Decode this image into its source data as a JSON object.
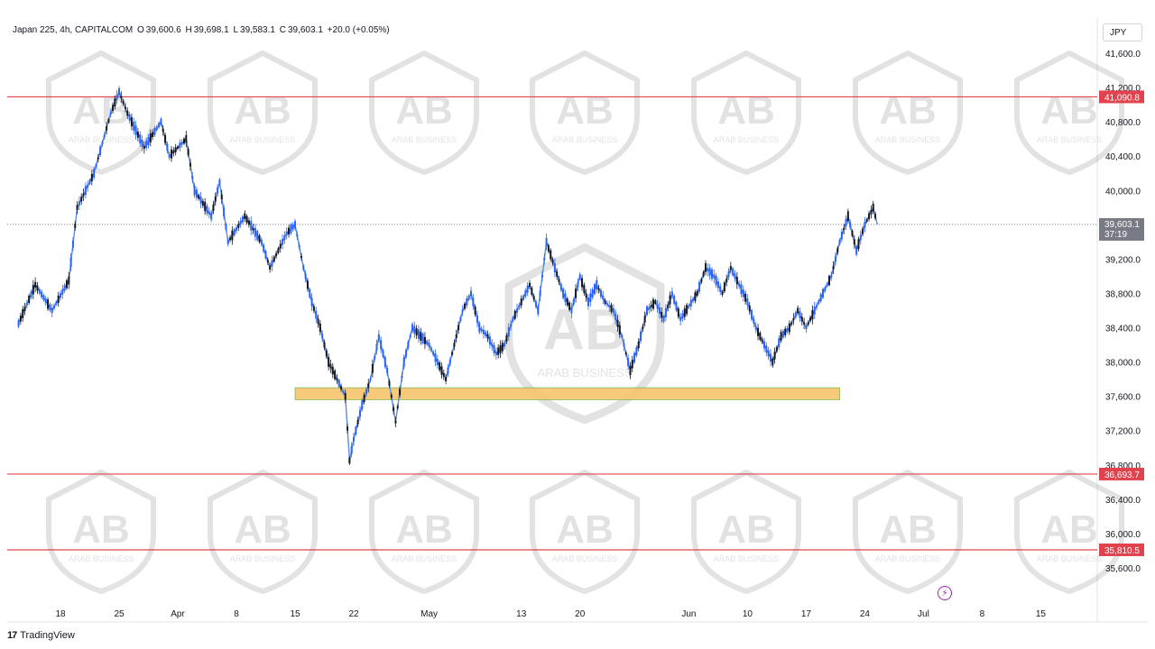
{
  "header": {
    "symbol": "Japan 225, 4h, CAPITALCOM",
    "o_label": "O",
    "o_value": "39,600.6",
    "h_label": "H",
    "h_value": "39,698.1",
    "l_label": "L",
    "l_value": "39,583.1",
    "c_label": "C",
    "c_value": "39,603.1",
    "change": "+20.0 (+0.05%)"
  },
  "currency_button": "JPY",
  "footer": {
    "brand": "TradingView"
  },
  "watermark": {
    "text": "ARAB BUSINESS"
  },
  "colors": {
    "up": "#2962ff",
    "down": "#131722",
    "line": "#5b8fd9",
    "level": "#e0434e",
    "zone": "#f7c46c",
    "zone_border": "#7cb342"
  },
  "chart_data": {
    "type": "line",
    "title": "Japan 225, 4h, CAPITALCOM",
    "ylim": [
      35300,
      41900
    ],
    "y_ticks": [
      35600,
      36000,
      36400,
      36800,
      37200,
      37600,
      38000,
      38400,
      38800,
      39200,
      39600,
      40000,
      40400,
      40800,
      41200,
      41600
    ],
    "y_tick_labels": [
      "35,600.0",
      "36,000.0",
      "36,400.0",
      "36,800.0",
      "37,200.0",
      "37,600.0",
      "38,000.0",
      "38,400.0",
      "38,800.0",
      "39,200.0",
      "39,600.0",
      "40,000.0",
      "40,400.0",
      "40,800.0",
      "41,200.0",
      "41,600.0"
    ],
    "x_range": [
      0,
      112
    ],
    "x_ticks": [
      {
        "d": 4,
        "label": "18"
      },
      {
        "d": 11,
        "label": "25"
      },
      {
        "d": 18,
        "label": "Apr"
      },
      {
        "d": 25,
        "label": "8"
      },
      {
        "d": 32,
        "label": "15"
      },
      {
        "d": 39,
        "label": "22"
      },
      {
        "d": 48,
        "label": "May"
      },
      {
        "d": 59,
        "label": "13"
      },
      {
        "d": 66,
        "label": "20"
      },
      {
        "d": 79,
        "label": "Jun"
      },
      {
        "d": 86,
        "label": "10"
      },
      {
        "d": 93,
        "label": "17"
      },
      {
        "d": 100,
        "label": "24"
      },
      {
        "d": 107,
        "label": "Jul"
      },
      {
        "d": 114,
        "label": "8"
      },
      {
        "d": 121,
        "label": "15"
      }
    ],
    "price_path": [
      [
        -1,
        38450
      ],
      [
        1,
        38900
      ],
      [
        3,
        38600
      ],
      [
        5,
        38950
      ],
      [
        6,
        39800
      ],
      [
        8,
        40200
      ],
      [
        10,
        40900
      ],
      [
        11,
        41150
      ],
      [
        12,
        40900
      ],
      [
        13,
        40700
      ],
      [
        14,
        40500
      ],
      [
        16,
        40800
      ],
      [
        17,
        40400
      ],
      [
        19,
        40600
      ],
      [
        20,
        40000
      ],
      [
        22,
        39700
      ],
      [
        23,
        40100
      ],
      [
        24,
        39400
      ],
      [
        26,
        39700
      ],
      [
        28,
        39400
      ],
      [
        29,
        39100
      ],
      [
        31,
        39500
      ],
      [
        32,
        39600
      ],
      [
        33,
        39100
      ],
      [
        34,
        38700
      ],
      [
        35,
        38400
      ],
      [
        36,
        38000
      ],
      [
        37,
        37800
      ],
      [
        38,
        37600
      ],
      [
        38.5,
        36850
      ],
      [
        39,
        37100
      ],
      [
        40,
        37500
      ],
      [
        41,
        37800
      ],
      [
        42,
        38300
      ],
      [
        43,
        37900
      ],
      [
        44,
        37300
      ],
      [
        45,
        38000
      ],
      [
        46,
        38400
      ],
      [
        47,
        38300
      ],
      [
        48,
        38200
      ],
      [
        49,
        38000
      ],
      [
        50,
        37800
      ],
      [
        52,
        38600
      ],
      [
        53,
        38800
      ],
      [
        54,
        38400
      ],
      [
        55,
        38300
      ],
      [
        56,
        38100
      ],
      [
        57,
        38200
      ],
      [
        58,
        38500
      ],
      [
        59,
        38700
      ],
      [
        60,
        38900
      ],
      [
        61,
        38600
      ],
      [
        62,
        39400
      ],
      [
        63,
        39100
      ],
      [
        64,
        38800
      ],
      [
        65,
        38600
      ],
      [
        66,
        39000
      ],
      [
        67,
        38700
      ],
      [
        68,
        38900
      ],
      [
        69,
        38700
      ],
      [
        70,
        38600
      ],
      [
        71,
        38300
      ],
      [
        72,
        37900
      ],
      [
        73,
        38200
      ],
      [
        74,
        38600
      ],
      [
        75,
        38700
      ],
      [
        76,
        38500
      ],
      [
        77,
        38800
      ],
      [
        78,
        38500
      ],
      [
        80,
        38800
      ],
      [
        81,
        39100
      ],
      [
        82,
        39000
      ],
      [
        83,
        38800
      ],
      [
        84,
        39100
      ],
      [
        86,
        38700
      ],
      [
        87,
        38400
      ],
      [
        88,
        38200
      ],
      [
        89,
        38000
      ],
      [
        90,
        38300
      ],
      [
        91,
        38400
      ],
      [
        92,
        38600
      ],
      [
        93,
        38400
      ],
      [
        94,
        38600
      ],
      [
        95,
        38800
      ],
      [
        96,
        39000
      ],
      [
        97,
        39400
      ],
      [
        98,
        39700
      ],
      [
        99,
        39300
      ],
      [
        100,
        39600
      ],
      [
        101,
        39800
      ],
      [
        101.5,
        39603
      ]
    ],
    "levels": [
      {
        "value": 41090.8,
        "label": "41,090.8"
      },
      {
        "value": 36693.7,
        "label": "36,693.7"
      },
      {
        "value": 35810.5,
        "label": "35,810.5"
      }
    ],
    "support_zone": {
      "y_low": 37560,
      "y_high": 37700,
      "x_start": 32,
      "x_end": 97
    },
    "current": {
      "value": 39603.1,
      "label": "39,603.1",
      "countdown": "37:19"
    }
  }
}
